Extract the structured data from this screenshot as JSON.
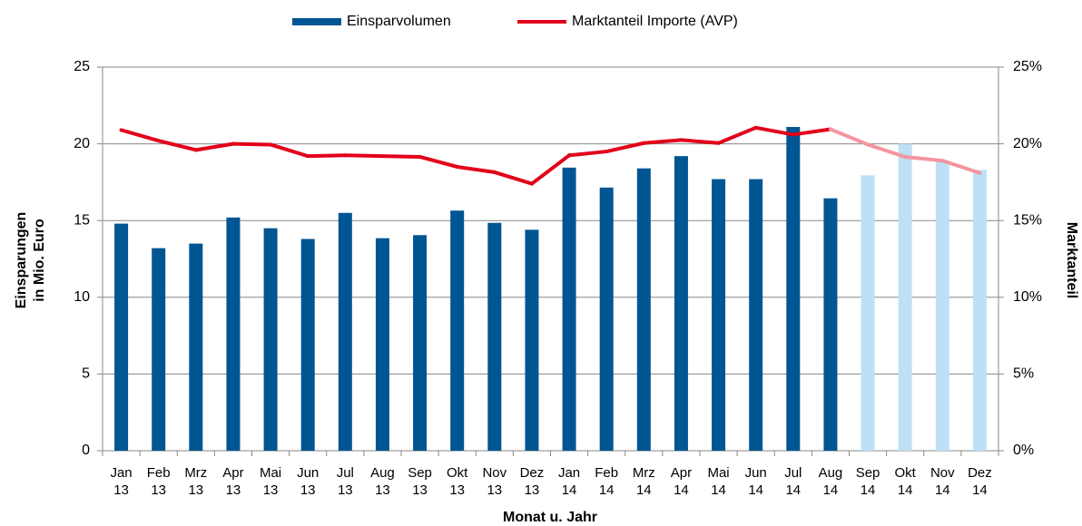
{
  "chart_data": {
    "type": "bar_line",
    "legend_position": "top",
    "grid": true,
    "y_title": [
      "Einsparungen",
      "in Mio. Euro"
    ],
    "y2_title": "Marktanteil",
    "x_title": "Monat u. Jahr",
    "categories": [
      [
        "Jan",
        "13"
      ],
      [
        "Feb",
        "13"
      ],
      [
        "Mrz",
        "13"
      ],
      [
        "Apr",
        "13"
      ],
      [
        "Mai",
        "13"
      ],
      [
        "Jun",
        "13"
      ],
      [
        "Jul",
        "13"
      ],
      [
        "Aug",
        "13"
      ],
      [
        "Sep",
        "13"
      ],
      [
        "Okt",
        "13"
      ],
      [
        "Nov",
        "13"
      ],
      [
        "Dez",
        "13"
      ],
      [
        "Jan",
        "14"
      ],
      [
        "Feb",
        "14"
      ],
      [
        "Mrz",
        "14"
      ],
      [
        "Apr",
        "14"
      ],
      [
        "Mai",
        "14"
      ],
      [
        "Jun",
        "14"
      ],
      [
        "Jul",
        "14"
      ],
      [
        "Aug",
        "14"
      ],
      [
        "Sep",
        "14"
      ],
      [
        "Okt",
        "14"
      ],
      [
        "Nov",
        "14"
      ],
      [
        "Dez",
        "14"
      ]
    ],
    "forecast_from": 20,
    "series": [
      {
        "name": "Einsparvolumen",
        "type": "bar",
        "color": "#005592",
        "forecast_color": "#bde0f7",
        "values": [
          14.8,
          13.2,
          13.5,
          15.2,
          14.5,
          13.8,
          15.5,
          13.85,
          14.05,
          15.65,
          14.85,
          14.4,
          18.45,
          17.15,
          18.4,
          19.2,
          17.7,
          17.7,
          21.1,
          16.45,
          17.95,
          20.0,
          18.9,
          18.3
        ]
      },
      {
        "name": "Marktanteil Importe (AVP)",
        "type": "line",
        "axis": "y2",
        "color": "#e2001a",
        "forecast_color": "#f4959e",
        "values": [
          20.9,
          20.2,
          19.6,
          20.0,
          19.95,
          19.2,
          19.25,
          19.2,
          19.15,
          18.5,
          18.15,
          17.4,
          19.25,
          19.5,
          20.05,
          20.25,
          20.05,
          21.05,
          20.6,
          20.95,
          19.95,
          19.15,
          18.9,
          18.1
        ]
      }
    ],
    "ylim": [
      0,
      25
    ],
    "yticks": [
      0,
      5,
      10,
      15,
      20,
      25
    ],
    "y2lim": [
      0,
      25
    ],
    "y2ticks": [
      {
        "value": 0,
        "label": "0%"
      },
      {
        "value": 5,
        "label": "5%"
      },
      {
        "value": 10,
        "label": "10%"
      },
      {
        "value": 15,
        "label": "15%"
      },
      {
        "value": 20,
        "label": "20%"
      },
      {
        "value": 25,
        "label": "25%"
      }
    ]
  }
}
